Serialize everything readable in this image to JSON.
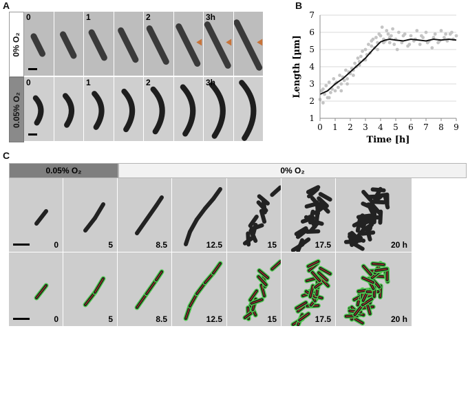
{
  "panels": {
    "a": "A",
    "b": "B",
    "c": "C"
  },
  "panel_a": {
    "row1_label": "0% O₂",
    "row2_label": "0.05% O₂",
    "row1_times": [
      "0",
      "",
      "1",
      "",
      "2",
      "",
      "3h",
      ""
    ],
    "row2_times": [
      "0",
      "",
      "1",
      "",
      "2",
      "",
      "3h",
      ""
    ]
  },
  "panel_c": {
    "header_left": "0.05% O₂",
    "header_right": "0% O₂",
    "times": [
      "0",
      "5",
      "8.5",
      "12.5",
      "15",
      "17.5",
      "20 h"
    ]
  },
  "colors": {
    "arrow": "#c8743a",
    "outline": "#4ec84e",
    "centerline": "#c83a2a"
  },
  "chart_data": {
    "type": "scatter",
    "xlabel": "Time [h]",
    "ylabel": "Length [µm]",
    "xlim": [
      0,
      9
    ],
    "ylim": [
      1,
      7
    ],
    "xticks": [
      "0",
      "1",
      "2",
      "3",
      "4",
      "5",
      "6",
      "7",
      "8",
      "9"
    ],
    "yticks": [
      "1",
      "2",
      "3",
      "4",
      "5",
      "6",
      "7"
    ],
    "grid": "horizontal",
    "series": [
      {
        "kind": "scatter",
        "color": "#c4c4c4",
        "x": [
          0.0,
          0.1,
          0.2,
          0.3,
          0.4,
          0.5,
          0.6,
          0.7,
          0.8,
          0.9,
          1.0,
          1.1,
          1.2,
          1.3,
          1.4,
          1.5,
          1.6,
          1.7,
          1.8,
          1.9,
          2.0,
          2.1,
          2.2,
          2.3,
          2.4,
          2.5,
          2.6,
          2.7,
          2.8,
          2.9,
          3.0,
          3.1,
          3.2,
          3.3,
          3.4,
          3.5,
          3.6,
          3.7,
          3.8,
          3.9,
          4.0,
          4.1,
          4.2,
          4.3,
          4.4,
          4.5,
          4.6,
          4.7,
          4.8,
          4.9,
          5.0,
          5.2,
          5.4,
          5.6,
          5.8,
          6.0,
          6.2,
          6.4,
          6.6,
          6.8,
          7.0,
          7.2,
          7.4,
          7.6,
          7.8,
          8.0,
          8.2,
          8.4,
          8.6,
          8.8,
          9.0,
          0.2,
          0.6,
          1.0,
          1.4,
          1.8,
          2.2,
          2.6,
          3.0,
          3.4,
          3.8,
          4.2,
          4.6,
          5.1,
          5.5,
          5.9,
          6.3,
          6.7,
          7.1,
          7.5,
          7.9,
          8.3,
          8.7
        ],
        "y": [
          2.1,
          2.6,
          1.9,
          2.4,
          2.9,
          2.2,
          3.1,
          2.5,
          2.7,
          3.3,
          2.6,
          3.1,
          2.8,
          3.5,
          3.0,
          3.4,
          3.2,
          3.8,
          3.3,
          3.7,
          3.6,
          3.9,
          3.5,
          4.2,
          4.0,
          4.5,
          4.1,
          4.6,
          4.9,
          4.4,
          5.0,
          4.7,
          5.3,
          4.8,
          5.2,
          5.6,
          5.1,
          5.7,
          5.4,
          5.9,
          5.8,
          6.3,
          5.6,
          5.5,
          6.1,
          5.9,
          5.4,
          5.8,
          6.2,
          5.3,
          5.6,
          6.0,
          5.4,
          5.9,
          5.2,
          5.8,
          5.5,
          6.1,
          5.3,
          5.7,
          6.0,
          5.5,
          5.1,
          5.9,
          5.4,
          6.1,
          5.7,
          5.5,
          5.9,
          5.6,
          5.8,
          2.7,
          2.2,
          3.0,
          2.6,
          3.0,
          3.8,
          4.3,
          4.4,
          5.5,
          5.0,
          5.4,
          5.7,
          5.0,
          5.8,
          5.3,
          5.6,
          5.8,
          5.4,
          5.7,
          5.5,
          5.9,
          6.0
        ]
      },
      {
        "kind": "line",
        "color": "#111111",
        "x": [
          0,
          0.5,
          1,
          1.5,
          2,
          2.5,
          3,
          3.5,
          4,
          4.3,
          4.6,
          5,
          5.5,
          6,
          6.5,
          7,
          7.5,
          8,
          8.5,
          9
        ],
        "y": [
          2.4,
          2.6,
          3.0,
          3.3,
          3.7,
          4.1,
          4.5,
          5.0,
          5.45,
          5.55,
          5.6,
          5.55,
          5.5,
          5.6,
          5.55,
          5.5,
          5.6,
          5.55,
          5.6,
          5.55
        ]
      }
    ]
  }
}
